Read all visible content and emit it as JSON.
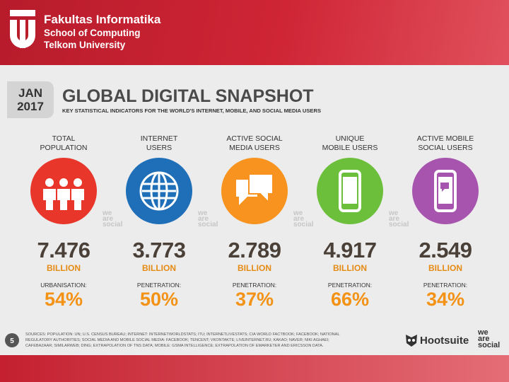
{
  "header": {
    "lines": [
      "Fakultas Informatika",
      "School of Computing",
      "Telkom University"
    ]
  },
  "slide": {
    "badge": [
      "JAN",
      "2017"
    ],
    "title": "GLOBAL DIGITAL SNAPSHOT",
    "subtitle": "KEY STATISTICAL INDICATORS FOR THE WORLD'S INTERNET, MOBILE, AND SOCIAL MEDIA USERS",
    "watermark": [
      "we",
      "are",
      "social"
    ],
    "stats": [
      {
        "label": [
          "TOTAL",
          "POPULATION"
        ],
        "value": "7.476",
        "unit": "BILLION",
        "sub_label": "URBANISATION:",
        "sub_value": "54%",
        "color": "#e8372a"
      },
      {
        "label": [
          "INTERNET",
          "USERS"
        ],
        "value": "3.773",
        "unit": "BILLION",
        "sub_label": "PENETRATION:",
        "sub_value": "50%",
        "color": "#1f6fb8"
      },
      {
        "label": [
          "ACTIVE SOCIAL",
          "MEDIA USERS"
        ],
        "value": "2.789",
        "unit": "BILLION",
        "sub_label": "PENETRATION:",
        "sub_value": "37%",
        "color": "#f7931e"
      },
      {
        "label": [
          "UNIQUE",
          "MOBILE USERS"
        ],
        "value": "4.917",
        "unit": "BILLION",
        "sub_label": "PENETRATION:",
        "sub_value": "66%",
        "color": "#6cbf3b"
      },
      {
        "label": [
          "ACTIVE MOBILE",
          "SOCIAL USERS"
        ],
        "value": "2.549",
        "unit": "BILLION",
        "sub_label": "PENETRATION:",
        "sub_value": "34%",
        "color": "#a654ad"
      }
    ],
    "page_number": "5",
    "sources": "SOURCES: POPULATION: UN; U.S. CENSUS BUREAU; INTERNET: INTERNETWORLDSTATS; ITU; INTERNETLIVESTATS; CIA WORLD FACTBOOK; FACEBOOK; NATIONAL REGULATORY AUTHORITIES; SOCIAL MEDIA AND MOBILE SOCIAL MEDIA: FACEBOOK; TENCENT; VKONTAKTE; LIVEINTERNET.RU; KAKAO; NAVER; NIKI AGHAEI; CAFEBAZAAR; SIMILARWEB; DING; EXTRAPOLATION OF TNS DATA; MOBILE: GSMA INTELLIGENCE; EXTRAPOLATION OF EMARKETER AND ERICSSON DATA.",
    "brand": "Hootsuite",
    "brand2": [
      "we",
      "are",
      "social"
    ]
  }
}
